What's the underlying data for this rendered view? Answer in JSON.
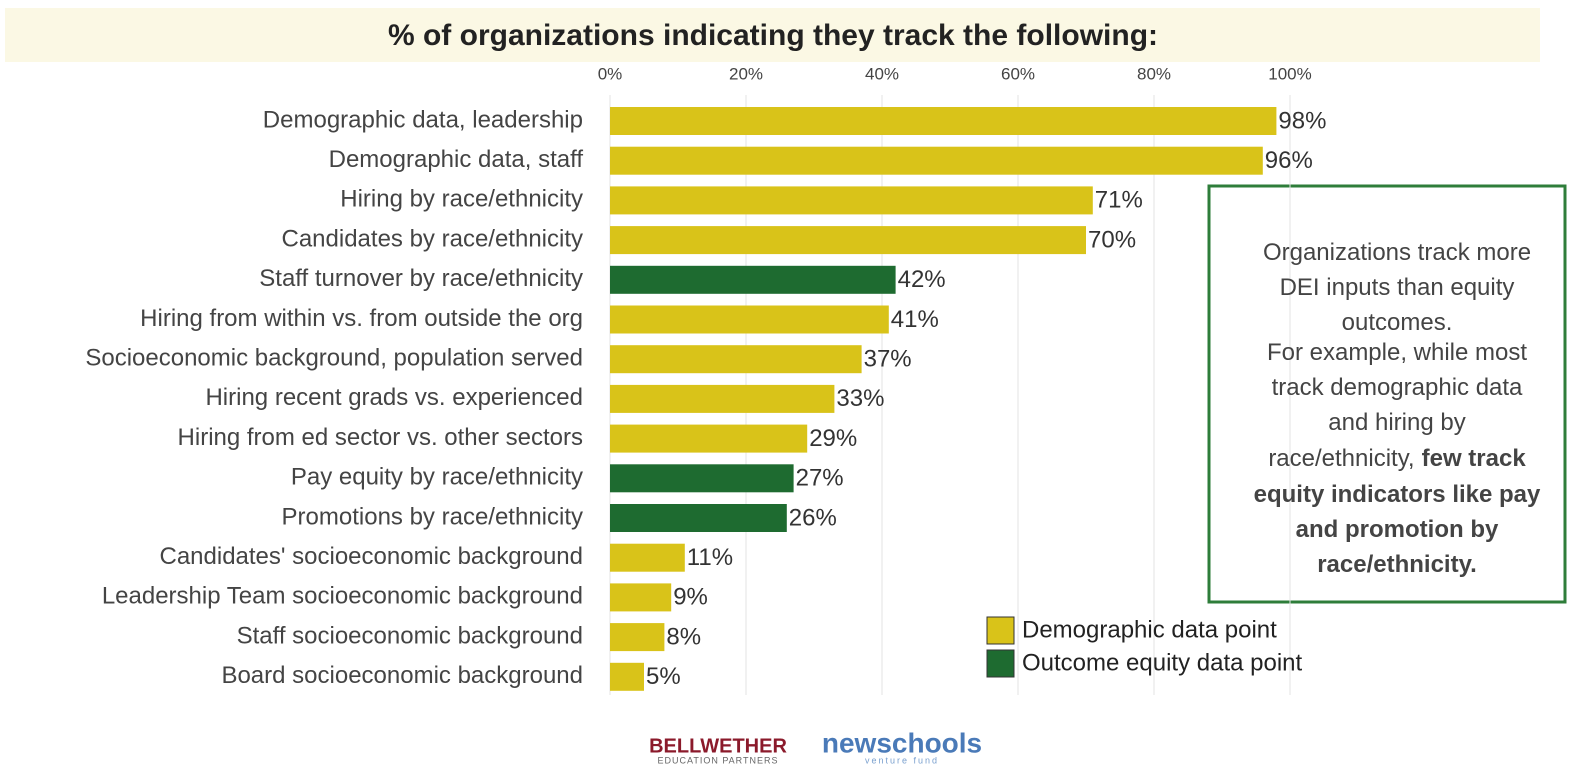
{
  "chart_data": {
    "type": "hbar",
    "title": "% of organizations indicating they track the following:",
    "categories": [
      "Demographic data, leadership",
      "Demographic data, staff",
      "Hiring by race/ethnicity",
      "Candidates by race/ethnicity",
      "Staff turnover by race/ethnicity",
      "Hiring from within vs. from outside the org",
      "Socioeconomic background, population served",
      "Hiring recent grads vs. experienced",
      "Hiring from ed sector vs. other sectors",
      "Pay equity by race/ethnicity",
      "Promotions by race/ethnicity",
      "Candidates' socioeconomic background",
      "Leadership Team socioeconomic background",
      "Staff socioeconomic background",
      "Board socioeconomic background"
    ],
    "series": [
      {
        "name": "Demographic data point",
        "color": "#d9c319",
        "values": [
          98,
          96,
          71,
          70,
          null,
          41,
          37,
          33,
          29,
          null,
          null,
          11,
          9,
          8,
          5
        ],
        "value_labels": [
          "98%",
          "96%",
          "71%",
          "70%",
          null,
          "41%",
          "37%",
          "33%",
          "29%",
          null,
          null,
          "11%",
          "9%",
          "8%",
          "5%"
        ]
      },
      {
        "name": "Outcome equity data point",
        "color": "#1e6b30",
        "values": [
          null,
          null,
          null,
          null,
          42,
          null,
          null,
          null,
          null,
          27,
          26,
          null,
          null,
          null,
          null
        ],
        "value_labels": [
          null,
          null,
          null,
          null,
          "42%",
          null,
          null,
          null,
          null,
          "27%",
          "26%",
          null,
          null,
          null,
          null
        ]
      }
    ],
    "xlim": [
      0,
      100
    ],
    "xticks": [
      {
        "value": 0,
        "label": "0%"
      },
      {
        "value": 20,
        "label": "20%"
      },
      {
        "value": 40,
        "label": "40%"
      },
      {
        "value": 60,
        "label": "60%"
      },
      {
        "value": 80,
        "label": "80%"
      },
      {
        "value": 100,
        "label": "100%"
      }
    ],
    "grid": true,
    "legend": "bottom-right",
    "annotation": {
      "lines": [
        [
          {
            "text": "Organizations track more"
          }
        ],
        [
          {
            "text": "DEI inputs than equity"
          }
        ],
        [
          {
            "text": "outcomes."
          }
        ],
        [
          {
            "text": "For example, while most"
          }
        ],
        [
          {
            "text": "track demographic data"
          }
        ],
        [
          {
            "text": "and hiring by"
          }
        ],
        [
          {
            "text": "race/ethnicity,"
          },
          {
            "text": "few track",
            "bold": true
          }
        ],
        [
          {
            "text": "equity indicators like pay",
            "bold": true
          }
        ],
        [
          {
            "text": "and promotion by",
            "bold": true
          }
        ],
        [
          {
            "text": "race/ethnicity.",
            "bold": true
          }
        ]
      ]
    },
    "logos": {
      "bellwether": "BELLWETHER",
      "bellwether_sub": "EDUCATION PARTNERS",
      "newschools": "newschools",
      "newschools_sub": "venture fund"
    }
  }
}
